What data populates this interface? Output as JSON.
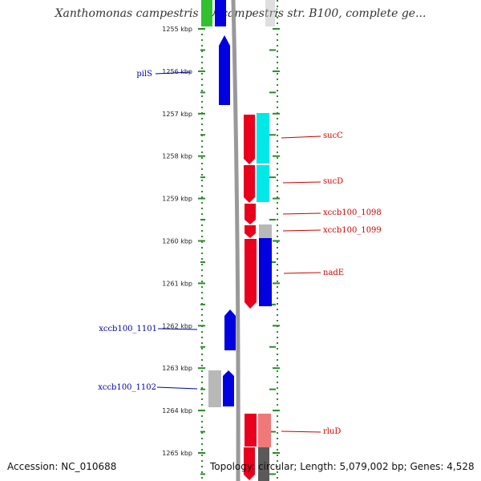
{
  "title": "Xanthomonas campestris pv. campestris str. B100, complete ge...",
  "footer": {
    "accession": "Accession: NC_010688",
    "topology": "Topology: circular; Length: 5,079,002 bp; Genes: 4,528"
  },
  "axis": {
    "ticks": [
      {
        "label": "1255 kbp",
        "kbp": 1255
      },
      {
        "label": "1256 kbp",
        "kbp": 1256
      },
      {
        "label": "1257 kbp",
        "kbp": 1257
      },
      {
        "label": "1258 kbp",
        "kbp": 1258
      },
      {
        "label": "1259 kbp",
        "kbp": 1259
      },
      {
        "label": "1260 kbp",
        "kbp": 1260
      },
      {
        "label": "1261 kbp",
        "kbp": 1261
      },
      {
        "label": "1262 kbp",
        "kbp": 1262
      },
      {
        "label": "1263 kbp",
        "kbp": 1263
      },
      {
        "label": "1264 kbp",
        "kbp": 1264
      },
      {
        "label": "1265 kbp",
        "kbp": 1265
      }
    ]
  },
  "colors": {
    "forward_strand": "#e8001c",
    "reverse_strand": "#0000e0",
    "cyan_track": "#00e8e8",
    "gray_track": "#b8b8b8",
    "pink_track": "#f07878",
    "green_track": "#30c030",
    "ruler_dots": "#2a8a2a",
    "backbone": "#999999",
    "left_label": "#0000aa",
    "right_label": "#cc0000"
  },
  "genes": [
    {
      "name": "pilS",
      "side": "left",
      "start_kbp": 1255.3,
      "end_kbp": 1256.8
    },
    {
      "name": "sucC",
      "side": "right",
      "start_kbp": 1257.0,
      "end_kbp": 1258.2
    },
    {
      "name": "sucD",
      "side": "right",
      "start_kbp": 1258.2,
      "end_kbp": 1259.1
    },
    {
      "name": "xccb100_1098",
      "side": "right",
      "start_kbp": 1259.1,
      "end_kbp": 1259.6
    },
    {
      "name": "xccb100_1099",
      "side": "right",
      "start_kbp": 1259.6,
      "end_kbp": 1259.9
    },
    {
      "name": "nadE",
      "side": "right",
      "start_kbp": 1259.9,
      "end_kbp": 1261.6
    },
    {
      "name": "xccb100_1101",
      "side": "left",
      "start_kbp": 1261.6,
      "end_kbp": 1262.6
    },
    {
      "name": "xccb100_1102",
      "side": "left",
      "start_kbp": 1263.0,
      "end_kbp": 1263.9
    },
    {
      "name": "rluD",
      "side": "right",
      "start_kbp": 1264.1,
      "end_kbp": 1265.8
    }
  ]
}
